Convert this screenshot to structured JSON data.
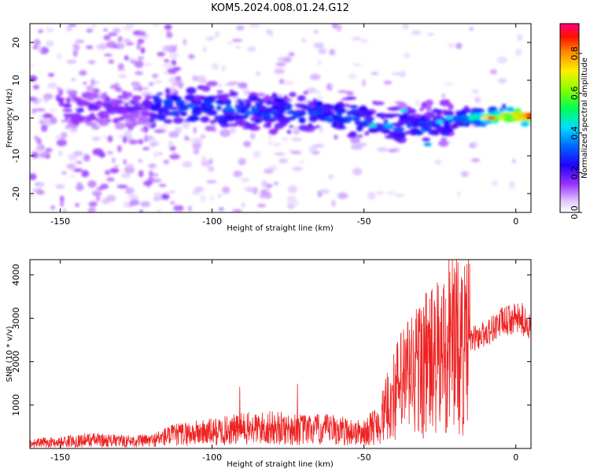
{
  "title": "KOM5.2024.008.01.24.G12",
  "colors": {
    "snr_line": "#ee2222",
    "spectrogram_cmap": "rainbow_white_low"
  },
  "chart_data": [
    {
      "type": "heatmap",
      "xlabel": "Height of straight line (km)",
      "ylabel": "Frequency (Hz)",
      "xlim": [
        -160,
        5
      ],
      "ylim": [
        -25,
        25
      ],
      "xticks": [
        {
          "v": -150,
          "label": "-150"
        },
        {
          "v": -100,
          "label": "-100"
        },
        {
          "v": -50,
          "label": "-50"
        },
        {
          "v": 0,
          "label": "0"
        }
      ],
      "yticks": [
        {
          "v": 20,
          "label": "20"
        },
        {
          "v": 10,
          "label": "10"
        },
        {
          "v": 0,
          "label": "0"
        },
        {
          "v": -10,
          "label": "-10"
        },
        {
          "v": -20,
          "label": "-20"
        }
      ],
      "colorbar": {
        "label": "Normalized spectral amplitude",
        "range": [
          0,
          0.95
        ],
        "ticks": [
          {
            "v": 0.0,
            "label": "0.0"
          },
          {
            "v": 0.2,
            "label": "0.2"
          },
          {
            "v": 0.4,
            "label": "0.4"
          },
          {
            "v": 0.6,
            "label": "0.6"
          },
          {
            "v": 0.8,
            "label": "0.8"
          }
        ]
      },
      "ridge_frequency_hz": [
        {
          "x": -145,
          "y": 2.5
        },
        {
          "x": -120,
          "y": 3
        },
        {
          "x": -100,
          "y": 3
        },
        {
          "x": -80,
          "y": 1.5
        },
        {
          "x": -60,
          "y": 0.5
        },
        {
          "x": -45,
          "y": -1
        },
        {
          "x": -30,
          "y": -3
        },
        {
          "x": -20,
          "y": 0
        },
        {
          "x": -10,
          "y": 0
        },
        {
          "x": 0,
          "y": 0.5
        }
      ]
    },
    {
      "type": "line",
      "xlabel": "Height of straight line (km)",
      "ylabel": "SNR (10 * v/v)",
      "xlim": [
        -160,
        5
      ],
      "ylim": [
        0,
        4350
      ],
      "xticks": [
        {
          "v": -150,
          "label": "-150"
        },
        {
          "v": -100,
          "label": "-100"
        },
        {
          "v": -50,
          "label": "-50"
        },
        {
          "v": 0,
          "label": "0"
        }
      ],
      "yticks": [
        {
          "v": 1000,
          "label": "1000"
        },
        {
          "v": 2000,
          "label": "2000"
        },
        {
          "v": 3000,
          "label": "3000"
        },
        {
          "v": 4000,
          "label": "4000"
        }
      ],
      "series": [
        {
          "x": [
            -160,
            -150,
            -140,
            -130,
            -120,
            -115,
            -110,
            -100,
            -90,
            -80,
            -70,
            -60,
            -50,
            -45,
            -40,
            -35,
            -30,
            -25,
            -22,
            -20,
            -17,
            -15,
            -10,
            -5,
            0,
            5
          ],
          "y": [
            120,
            150,
            200,
            170,
            180,
            280,
            330,
            380,
            450,
            470,
            430,
            430,
            350,
            600,
            1250,
            1700,
            1950,
            2050,
            2500,
            2450,
            2250,
            2500,
            2650,
            2900,
            3000,
            2850
          ],
          "peaks": [
            {
              "x": -21,
              "y": 4350
            },
            {
              "x": -91,
              "y": 1420
            },
            {
              "x": -72,
              "y": 1490
            },
            {
              "x": -35,
              "y": 2500
            },
            {
              "x": 2,
              "y": 3350
            }
          ]
        }
      ]
    }
  ]
}
